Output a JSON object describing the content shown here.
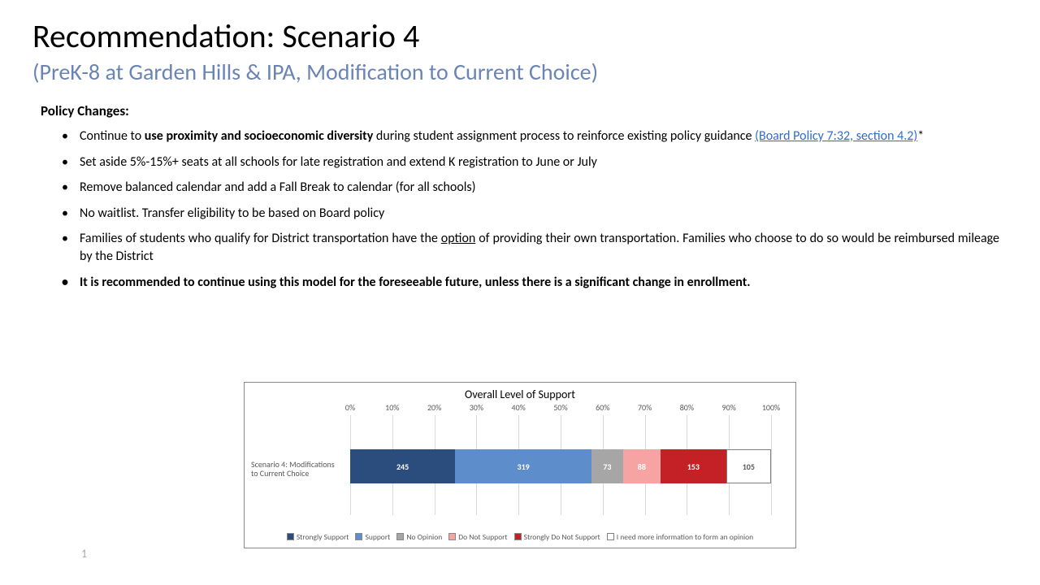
{
  "title": "Recommendation: Scenario 4",
  "subtitle": "(PreK-8 at Garden Hills & IPA, Modification to Current Choice)",
  "section_head": "Policy Changes:",
  "bullets": {
    "b1_pre": "Continue to ",
    "b1_bold": "use proximity and socioeconomic diversity",
    "b1_mid": " during student assignment process to reinforce existing policy guidance ",
    "b1_link": "(Board Policy 7:32, section 4.2)",
    "b1_post": "*",
    "b2": "Set aside 5%-15%+ seats at all schools for late registration and extend K registration to June or July",
    "b3": "Remove balanced calendar and add a Fall Break to calendar (for all schools)",
    "b4": "No waitlist. Transfer eligibility to be based on Board policy",
    "b5_pre": "Families of students who qualify for District transportation have the ",
    "b5_u": "option",
    "b5_post": " of providing their own transportation.  Families who choose to do so would be reimbursed mileage by the District",
    "b6": "It is recommended to continue using this model for the foreseeable future, unless there is a significant change in enrollment."
  },
  "page_num": "1",
  "chart": {
    "title": "Overall Level of Support",
    "row_label": "Scenario 4: Modifications to Current Choice",
    "ticks": [
      "0%",
      "10%",
      "20%",
      "30%",
      "40%",
      "50%",
      "60%",
      "70%",
      "80%",
      "90%",
      "100%"
    ],
    "tick_pct": [
      0,
      10,
      20,
      30,
      40,
      50,
      60,
      70,
      80,
      90,
      100
    ],
    "segments": [
      {
        "label": "245",
        "value": 245,
        "color": "#2b4d7e",
        "text": "#ffffff",
        "name": "Strongly Support"
      },
      {
        "label": "319",
        "value": 319,
        "color": "#5d8ecb",
        "text": "#ffffff",
        "name": "Support"
      },
      {
        "label": "73",
        "value": 73,
        "color": "#a6a6a6",
        "text": "#ffffff",
        "name": "No Opinion"
      },
      {
        "label": "88",
        "value": 88,
        "color": "#f5a3a3",
        "text": "#ffffff",
        "name": "Do Not Support"
      },
      {
        "label": "153",
        "value": 153,
        "color": "#c42127",
        "text": "#ffffff",
        "name": "Strongly Do Not Support"
      },
      {
        "label": "105",
        "value": 105,
        "color": "#ffffff",
        "text": "#595959",
        "name": "I need more information to form an opinion",
        "border": "#7f7f7f"
      }
    ],
    "legend": [
      {
        "name": "Strongly Support",
        "color": "#2b4d7e"
      },
      {
        "name": "Support",
        "color": "#5d8ecb"
      },
      {
        "name": "No Opinion",
        "color": "#a6a6a6"
      },
      {
        "name": "Do Not Support",
        "color": "#f5a3a3"
      },
      {
        "name": "Strongly Do Not Support",
        "color": "#c42127"
      },
      {
        "name": "I need more information to form an opinion",
        "color": "#ffffff",
        "border": "#7f7f7f"
      }
    ]
  }
}
